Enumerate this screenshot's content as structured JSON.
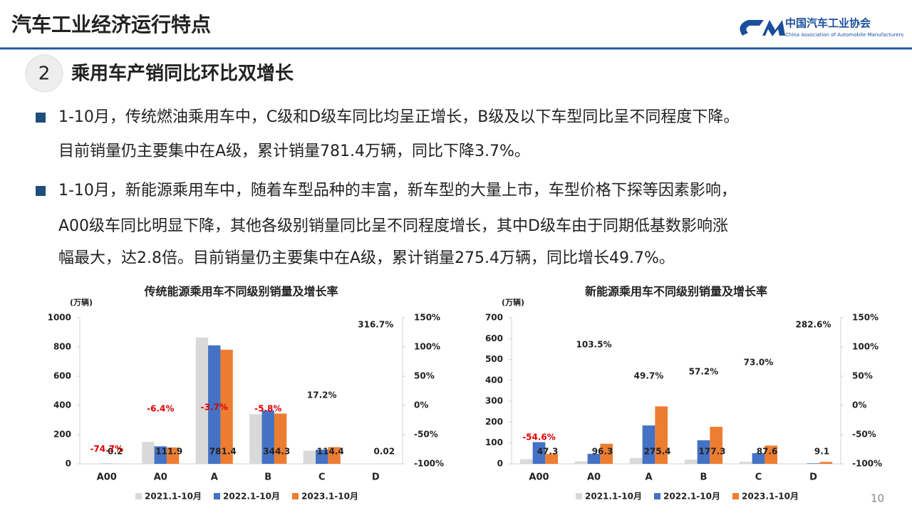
{
  "header": {
    "title": "汽车工业经济运行特点",
    "logo_name": "中国汽车工业协会",
    "logo_subtitle": "China Association of Automobile Manufacturers"
  },
  "section": {
    "number": "2",
    "title": "乘用车产销同比环比双增长"
  },
  "bullets": [
    [
      "1-10月，传统燃油乘用车中，C级和D级车同比均呈正增长，B级及以下车型同比呈不同程度下降。",
      "目前销量仍主要集中在A级，累计销量781.4万辆，同比下降3.7%。"
    ],
    [
      "1-10月，新能源乘用车中，随着车型品种的丰富，新车型的大量上市，车型价格下探等因素影响，",
      "A00级车同比明显下降，其他各级别销量同比呈不同程度增长，其中D级车由于同期低基数影响涨",
      "幅最大，达2.8倍。目前销量仍主要集中在A级，累计销量275.4万辆，同比增长49.7%。"
    ]
  ],
  "page_number": "10",
  "chart_data": [
    {
      "type": "bar",
      "title": "传统能源乘用车不同级别销量及增长率",
      "y_label": "(万辆)",
      "categories": [
        "A00",
        "A0",
        "A",
        "B",
        "C",
        "D"
      ],
      "series": [
        {
          "name": "2021.1-10月",
          "color": "#d9d9d9",
          "values": [
            1,
            150,
            865,
            340,
            90,
            0.01
          ]
        },
        {
          "name": "2022.1-10月",
          "color": "#4472c4",
          "values": [
            1,
            120,
            811,
            365,
            97,
            0.005
          ]
        },
        {
          "name": "2023.1-10月",
          "color": "#ed7d31",
          "values": [
            0.2,
            111.9,
            781.4,
            344.3,
            114.4,
            0.02
          ]
        }
      ],
      "growth": {
        "axis": "y2",
        "values": [
          -74.7,
          -6.4,
          -3.7,
          -5.8,
          17.2,
          316.7
        ],
        "value_labels": [
          "-74.7%",
          "-6.4%",
          "-3.7%",
          "-5.8%",
          "17.2%",
          "316.7%"
        ]
      },
      "ylim": [
        0,
        1000
      ],
      "yticks": [
        0,
        200,
        400,
        600,
        800,
        1000
      ],
      "y2lim": [
        -100,
        150
      ],
      "y2ticks": [
        {
          "value": -100,
          "label": "-100%"
        },
        {
          "value": -50,
          "label": "-50%"
        },
        {
          "value": 0,
          "label": "0%"
        },
        {
          "value": 50,
          "label": "50%"
        },
        {
          "value": 100,
          "label": "100%"
        },
        {
          "value": 150,
          "label": "150%"
        }
      ],
      "negative_color": "#e00000"
    },
    {
      "type": "bar",
      "title": "新能源乘用车不同级别销量及增长率",
      "y_label": "(万辆)",
      "categories": [
        "A00",
        "A0",
        "A",
        "B",
        "C",
        "D"
      ],
      "series": [
        {
          "name": "2021.1-10月",
          "color": "#d9d9d9",
          "values": [
            22,
            12,
            28,
            20,
            10,
            1
          ]
        },
        {
          "name": "2022.1-10月",
          "color": "#4472c4",
          "values": [
            104,
            48,
            184,
            113,
            51,
            2.4
          ]
        },
        {
          "name": "2023.1-10月",
          "color": "#ed7d31",
          "values": [
            47.3,
            96.3,
            275.4,
            177.3,
            87.6,
            9.1
          ]
        }
      ],
      "growth": {
        "axis": "y2",
        "values": [
          -54.6,
          103.5,
          49.7,
          57.2,
          73.0,
          282.6
        ],
        "value_labels": [
          "-54.6%",
          "103.5%",
          "49.7%",
          "57.2%",
          "73.0%",
          "282.6%"
        ]
      },
      "ylim": [
        0,
        700
      ],
      "yticks": [
        0,
        100,
        200,
        300,
        400,
        500,
        600,
        700
      ],
      "y2lim": [
        -100,
        150
      ],
      "y2ticks": [
        {
          "value": -100,
          "label": "-100%"
        },
        {
          "value": -50,
          "label": "-50%"
        },
        {
          "value": 0,
          "label": "0%"
        },
        {
          "value": 50,
          "label": "50%"
        },
        {
          "value": 100,
          "label": "100%"
        },
        {
          "value": 150,
          "label": "150%"
        }
      ],
      "negative_color": "#e00000"
    }
  ]
}
